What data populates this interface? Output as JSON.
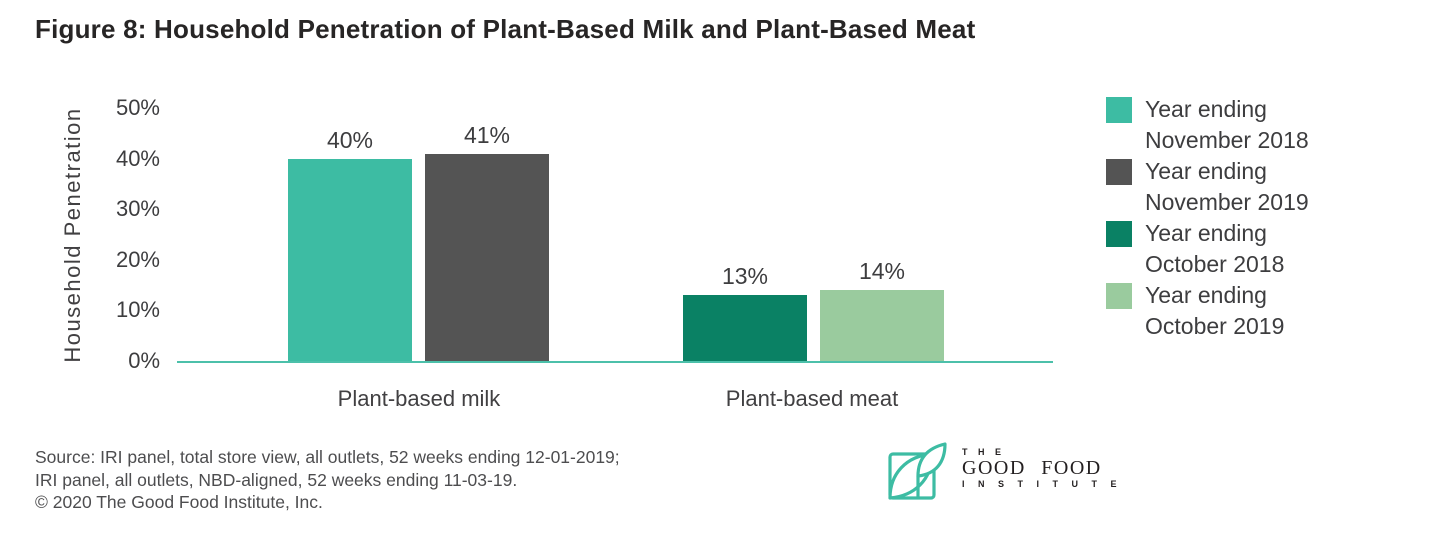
{
  "title": "Figure 8: Household Penetration of Plant-Based Milk and Plant-Based Meat",
  "chart_data": {
    "type": "bar",
    "title": "Figure 8: Household Penetration of Plant-Based Milk and Plant-Based Meat",
    "xlabel": "",
    "ylabel": "Household Penetration",
    "ylim": [
      0,
      50
    ],
    "ytick_labels": [
      "0%",
      "10%",
      "20%",
      "30%",
      "40%",
      "50%"
    ],
    "grid": false,
    "legend_position": "right",
    "categories": [
      "Plant-based milk",
      "Plant-based meat"
    ],
    "series": [
      {
        "name": "Year ending November 2018",
        "category": "Plant-based milk",
        "value": 40,
        "label": "40%",
        "color": "#3dbca3"
      },
      {
        "name": "Year ending November 2019",
        "category": "Plant-based milk",
        "value": 41,
        "label": "41%",
        "color": "#545454"
      },
      {
        "name": "Year ending October 2018",
        "category": "Plant-based meat",
        "value": 13,
        "label": "13%",
        "color": "#0a8164"
      },
      {
        "name": "Year ending October 2019",
        "category": "Plant-based meat",
        "value": 14,
        "label": "14%",
        "color": "#9acb9e"
      }
    ],
    "axis_line_color": "#4cc0aa"
  },
  "legend": {
    "items": [
      {
        "line1": "Year ending",
        "line2": "November 2018",
        "color": "#3dbca3"
      },
      {
        "line1": "Year ending",
        "line2": "November 2019",
        "color": "#545454"
      },
      {
        "line1": "Year ending",
        "line2": "October 2018",
        "color": "#0a8164"
      },
      {
        "line1": "Year ending",
        "line2": "October 2019",
        "color": "#9acb9e"
      }
    ]
  },
  "footer": {
    "source_lines": [
      "Source: IRI panel, total store view, all outlets, 52 weeks ending 12-01-2019;",
      "IRI panel, all outlets, NBD-aligned, 52 weeks ending 11-03-19.",
      "© 2020 The Good Food Institute, Inc."
    ]
  },
  "logo": {
    "the": "T H E",
    "name": "GOOD FOOD",
    "institute": "I N S T I T U T E",
    "accent_color": "#3dbca3"
  }
}
